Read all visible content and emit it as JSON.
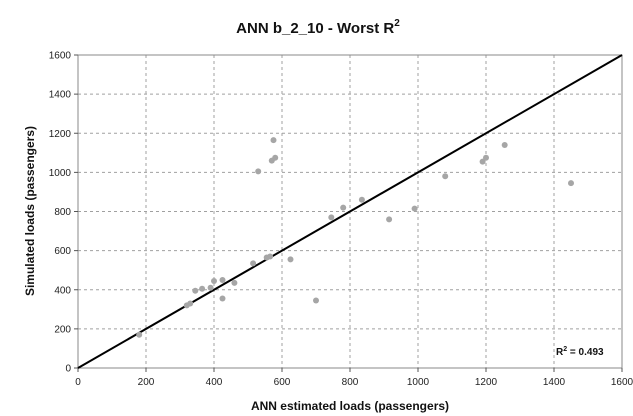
{
  "chart_data": {
    "type": "scatter",
    "title_main": "ANN b_2_10 - Worst R",
    "title_sup": "2",
    "xlabel": "ANN estimated loads (passengers)",
    "ylabel": "Simulated loads (passengers)",
    "xlim": [
      0,
      1600
    ],
    "ylim": [
      0,
      1600
    ],
    "x_ticks": [
      "0",
      "200",
      "400",
      "600",
      "800",
      "1000",
      "1200",
      "1400",
      "1600"
    ],
    "y_ticks": [
      "0",
      "200",
      "400",
      "600",
      "800",
      "1000",
      "1200",
      "1400",
      "1600"
    ],
    "grid": true,
    "grid_style": "dashed",
    "point_color": "#a6a6a6",
    "line_color": "#000000",
    "reference_line": {
      "from": [
        0,
        0
      ],
      "to": [
        1600,
        1600
      ]
    },
    "annotation_main": "R",
    "annotation_sup": "2",
    "annotation_value": " = 0.493",
    "points": [
      {
        "x": 180,
        "y": 170
      },
      {
        "x": 320,
        "y": 320
      },
      {
        "x": 330,
        "y": 330
      },
      {
        "x": 345,
        "y": 395
      },
      {
        "x": 365,
        "y": 405
      },
      {
        "x": 390,
        "y": 410
      },
      {
        "x": 400,
        "y": 445
      },
      {
        "x": 425,
        "y": 450
      },
      {
        "x": 425,
        "y": 355
      },
      {
        "x": 460,
        "y": 435
      },
      {
        "x": 515,
        "y": 535
      },
      {
        "x": 530,
        "y": 1005
      },
      {
        "x": 555,
        "y": 565
      },
      {
        "x": 565,
        "y": 570
      },
      {
        "x": 570,
        "y": 1060
      },
      {
        "x": 575,
        "y": 1165
      },
      {
        "x": 580,
        "y": 1075
      },
      {
        "x": 625,
        "y": 555
      },
      {
        "x": 700,
        "y": 345
      },
      {
        "x": 745,
        "y": 770
      },
      {
        "x": 780,
        "y": 820
      },
      {
        "x": 835,
        "y": 860
      },
      {
        "x": 915,
        "y": 760
      },
      {
        "x": 990,
        "y": 815
      },
      {
        "x": 1080,
        "y": 980
      },
      {
        "x": 1190,
        "y": 1055
      },
      {
        "x": 1200,
        "y": 1075
      },
      {
        "x": 1255,
        "y": 1140
      },
      {
        "x": 1450,
        "y": 945
      }
    ]
  }
}
